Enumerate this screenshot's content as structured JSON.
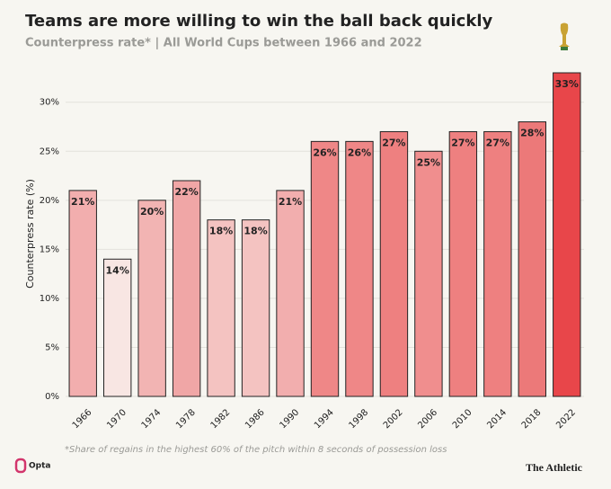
{
  "chart_data": {
    "type": "bar",
    "title": "Teams are more willing to win the ball back quickly",
    "subtitle": "Counterpress rate* | All World Cups between 1966 and 2022",
    "y_label": "Counterpress rate (%)",
    "footnote": "*Share of regains in the highest 60% of the pitch within 8 seconds of possession loss",
    "source": "Opta",
    "publisher": "The Athletic",
    "categories": [
      "1966",
      "1970",
      "1974",
      "1978",
      "1982",
      "1986",
      "1990",
      "1994",
      "1998",
      "2002",
      "2006",
      "2010",
      "2014",
      "2018",
      "2022"
    ],
    "values": [
      21,
      14,
      20,
      22,
      18,
      18,
      21,
      26,
      26,
      27,
      25,
      27,
      27,
      28,
      33
    ],
    "value_labels": [
      "21%",
      "14%",
      "20%",
      "22%",
      "18%",
      "18%",
      "21%",
      "26%",
      "26%",
      "27%",
      "25%",
      "27%",
      "27%",
      "28%",
      "33%"
    ],
    "colors": [
      "#f2aeae",
      "#f8e6e3",
      "#f2b4b3",
      "#f0a6a6",
      "#f4c3c1",
      "#f4c3c1",
      "#f2aeae",
      "#ef8787",
      "#ef8787",
      "#ee8080",
      "#f08e8e",
      "#ee8080",
      "#ee8080",
      "#ec7979",
      "#e8464a"
    ],
    "ylim": [
      0,
      33
    ],
    "yticks": [
      {
        "value": 0,
        "label": "0%"
      },
      {
        "value": 5,
        "label": "5%"
      },
      {
        "value": 10,
        "label": "10%"
      },
      {
        "value": 15,
        "label": "15%"
      },
      {
        "value": 20,
        "label": "20%"
      },
      {
        "value": 25,
        "label": "25%"
      },
      {
        "value": 30,
        "label": "30%"
      }
    ],
    "grid": true
  }
}
